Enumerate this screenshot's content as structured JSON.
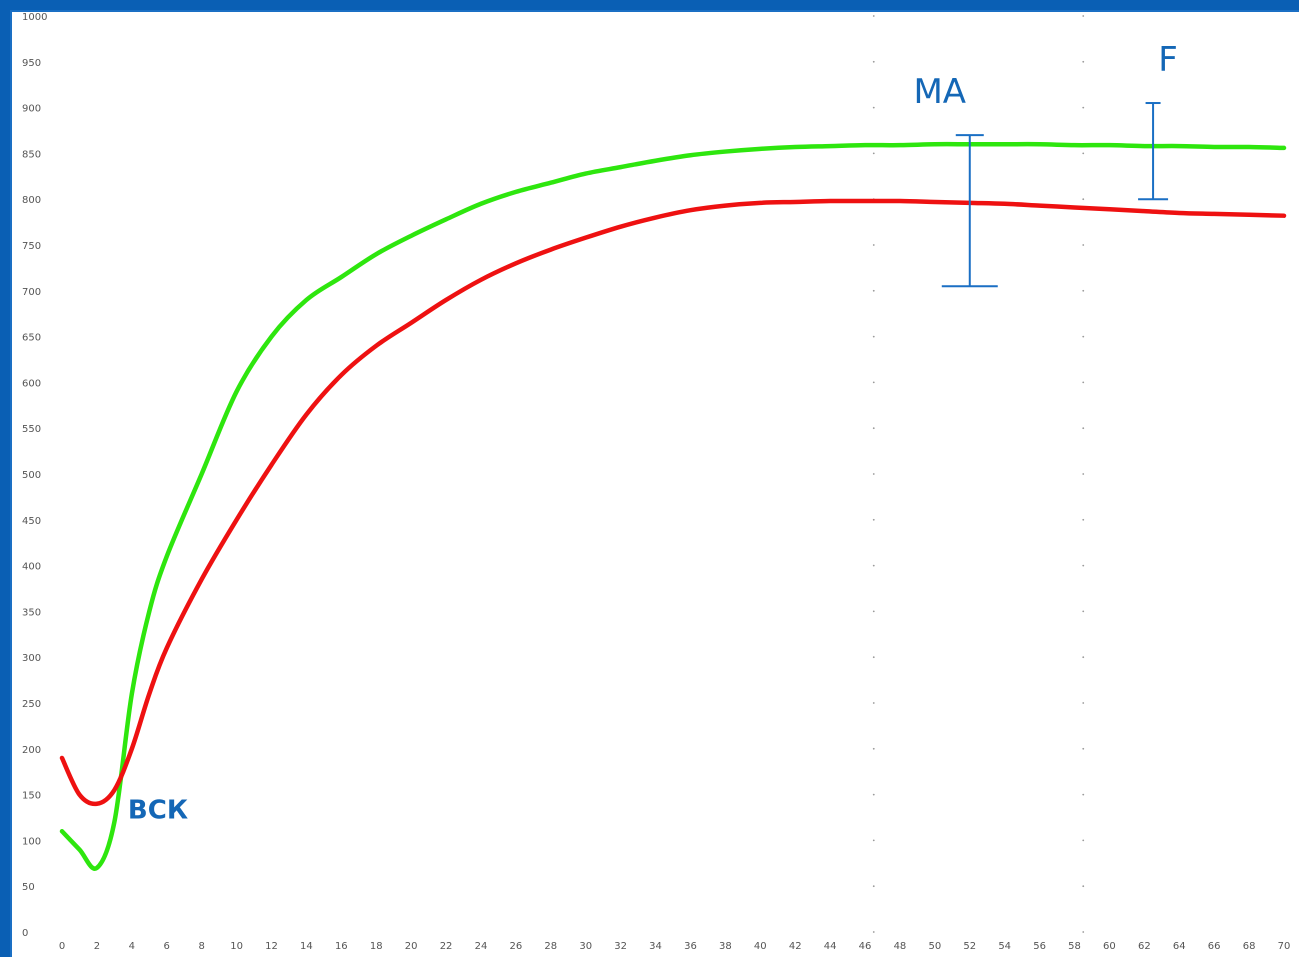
{
  "chart_data": {
    "type": "line",
    "ylim": [
      0,
      1000
    ],
    "xlim": [
      0,
      70
    ],
    "grid": false,
    "y_ticks": [
      "1000",
      "950",
      "900",
      "850",
      "800",
      "750",
      "700",
      "650",
      "600",
      "550",
      "500",
      "450",
      "400",
      "350",
      "300",
      "250",
      "200",
      "150",
      "100",
      "50",
      "0"
    ],
    "x_ticks": [
      "0",
      "2",
      "4",
      "6",
      "8",
      "10",
      "12",
      "14",
      "16",
      "18",
      "20",
      "22",
      "24",
      "26",
      "28",
      "30",
      "32",
      "34",
      "36",
      "38",
      "40",
      "42",
      "44",
      "46",
      "48",
      "50",
      "52",
      "54",
      "56",
      "58",
      "60",
      "62",
      "64",
      "66",
      "68",
      "70"
    ],
    "series": [
      {
        "color": "#2ee60e",
        "x": [
          0,
          1,
          2,
          3,
          4,
          5,
          6,
          8,
          10,
          12,
          14,
          16,
          18,
          20,
          22,
          24,
          26,
          28,
          30,
          32,
          34,
          36,
          38,
          40,
          42,
          44,
          46,
          48,
          50,
          52,
          54,
          56,
          58,
          60,
          62,
          64,
          66,
          68,
          70
        ],
        "values": [
          110,
          90,
          70,
          120,
          260,
          350,
          410,
          500,
          590,
          650,
          690,
          715,
          740,
          760,
          778,
          795,
          808,
          818,
          828,
          835,
          842,
          848,
          852,
          855,
          857,
          858,
          859,
          859,
          860,
          860,
          860,
          860,
          859,
          859,
          858,
          858,
          857,
          857,
          856
        ]
      },
      {
        "color": "#ee1111",
        "x": [
          0,
          1,
          2,
          3,
          4,
          5,
          6,
          8,
          10,
          12,
          14,
          16,
          18,
          20,
          22,
          24,
          26,
          28,
          30,
          32,
          34,
          36,
          38,
          40,
          42,
          44,
          46,
          48,
          50,
          52,
          54,
          56,
          58,
          60,
          62,
          64,
          66,
          68,
          70
        ],
        "values": [
          190,
          150,
          140,
          155,
          200,
          260,
          310,
          385,
          450,
          510,
          565,
          608,
          640,
          665,
          690,
          712,
          730,
          745,
          758,
          770,
          780,
          788,
          793,
          796,
          797,
          798,
          798,
          798,
          797,
          796,
          795,
          793,
          791,
          789,
          787,
          785,
          784,
          783,
          782
        ]
      }
    ],
    "annotations": [
      {
        "text": "MA",
        "x": 52,
        "y_low": 705,
        "y_high": 870
      },
      {
        "text": "F",
        "x": 62.5,
        "y_low": 800,
        "y_high": 905
      },
      {
        "text": "ВСК",
        "x": 5.5,
        "y": 135
      }
    ]
  }
}
